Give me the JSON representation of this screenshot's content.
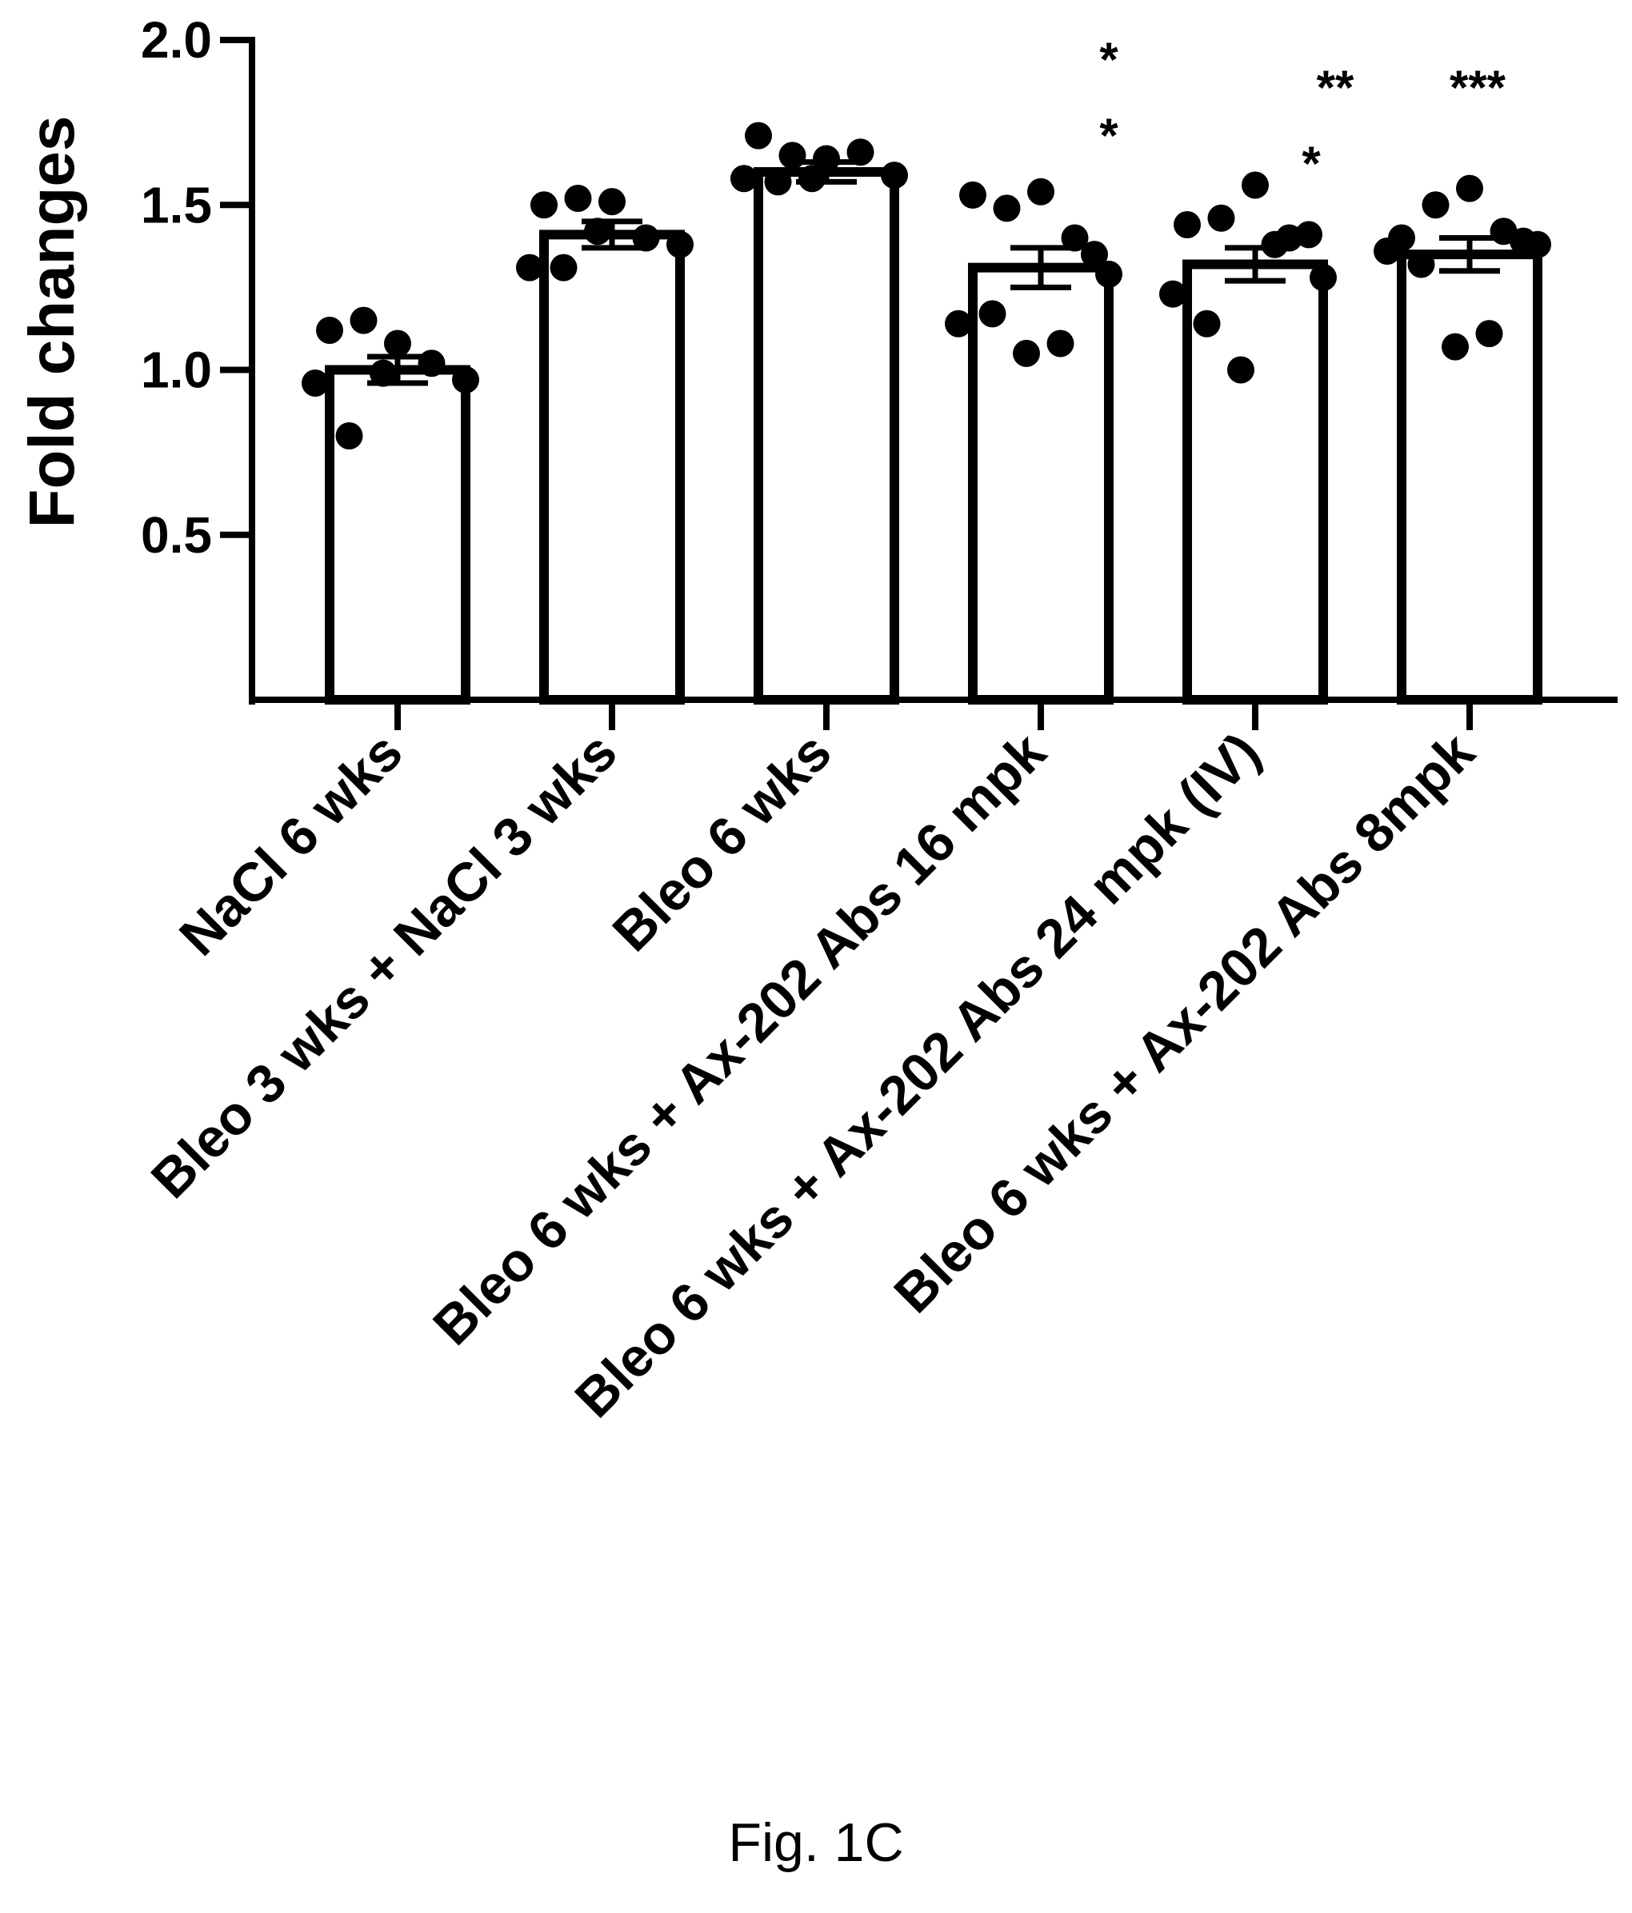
{
  "chart_data": {
    "type": "bar",
    "ylabel": "Fold changes",
    "ylim": [
      0,
      2.0
    ],
    "yticks": [
      0.5,
      1.0,
      1.5,
      2.0
    ],
    "ytick_labels": [
      "0.5",
      "1.0",
      "1.5",
      "2.0"
    ],
    "categories": [
      "NaCl 6 wks",
      "Bleo 3 wks + NaCl 3 wks",
      "Bleo 6 wks",
      "Bleo 6 wks + Ax-202 Abs 16 mpk",
      "Bleo 6 wks + Ax-202 Abs 24 mpk (IV)",
      "Bleo 6 wks + Ax-202 Abs 8mpk"
    ],
    "values": [
      1.0,
      1.41,
      1.6,
      1.31,
      1.32,
      1.35
    ],
    "errors": [
      0.04,
      0.04,
      0.03,
      0.06,
      0.05,
      0.05
    ],
    "points": [
      [
        1.12,
        1.15,
        1.08,
        1.02,
        0.97,
        0.96,
        0.8,
        0.99
      ],
      [
        1.5,
        1.52,
        1.51,
        1.4,
        1.38,
        1.31,
        1.31,
        1.42
      ],
      [
        1.71,
        1.65,
        1.64,
        1.66,
        1.59,
        1.58,
        1.57,
        1.58
      ],
      [
        1.53,
        1.49,
        1.54,
        1.4,
        1.29,
        1.14,
        1.17,
        1.05,
        1.08,
        1.35
      ],
      [
        1.44,
        1.46,
        1.56,
        1.4,
        1.28,
        1.23,
        1.14,
        1.0,
        1.38,
        1.41
      ],
      [
        1.4,
        1.5,
        1.55,
        1.42,
        1.38,
        1.36,
        1.32,
        1.07,
        1.11,
        1.39
      ]
    ],
    "significance": [
      "",
      "",
      "",
      "**",
      "***",
      "***"
    ]
  },
  "caption": "Fig. 1C"
}
